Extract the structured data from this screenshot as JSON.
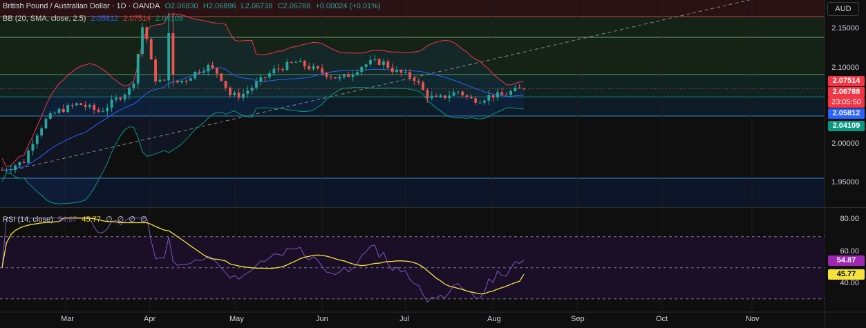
{
  "header": {
    "symbol": "British Pound / Australian Dollar · 1D · OANDA",
    "open": "O2.06830",
    "high": "H2.06896",
    "low": "L2.06738",
    "close": "C2.06788",
    "change": "+0.00024 (+0.01%)",
    "bb_label": "BB (20, SMA, close, 2.5)",
    "bb_basis": "2.05812",
    "bb_upper": "2.07514",
    "bb_lower": "2.04109"
  },
  "rsi_header": {
    "label": "RSI (14, close)",
    "rsi": "54.87",
    "ma": "45.77",
    "extras": [
      "∅",
      "∅",
      "∅",
      "∅"
    ]
  },
  "axis": {
    "unit": "AUD",
    "price_ticks": [
      "2.15000",
      "2.10000",
      "2.00000",
      "1.95000"
    ],
    "rsi_ticks": [
      "80.00",
      "60.00",
      "40.00"
    ],
    "months": [
      "Mar",
      "Apr",
      "May",
      "Jun",
      "Jul",
      "Aug",
      "Sep",
      "Oct",
      "Nov"
    ]
  },
  "badges": {
    "upper": "2.07514",
    "price": "2.06788",
    "countdown": "23:05:50",
    "basis": "2.05812",
    "lower": "2.04109",
    "rsi": "54.87",
    "rsi_ma": "45.77"
  },
  "colors": {
    "up": "#26a69a",
    "down": "#ef5350",
    "bb_basis": "#2962ff",
    "bb_upper": "#f23645",
    "bb_lower": "#089981",
    "rsi": "#7e57c2",
    "rsi_ma": "#f5e33b"
  },
  "chart_data": {
    "type": "candlestick",
    "instrument": "GBP/AUD",
    "interval": "1D",
    "ylim": [
      1.925,
      2.175
    ],
    "approx_close_path": [
      1.97,
      1.975,
      1.98,
      2.01,
      2.03,
      2.04,
      2.045,
      2.05,
      2.045,
      2.04,
      2.05,
      2.06,
      2.07,
      2.15,
      2.08,
      2.075,
      2.075,
      2.08,
      2.09,
      2.095,
      2.085,
      2.06,
      2.06,
      2.07,
      2.08,
      2.09,
      2.095,
      2.1,
      2.095,
      2.09,
      2.085,
      2.08,
      2.085,
      2.095,
      2.1,
      2.1,
      2.09,
      2.085,
      2.08,
      2.06,
      2.055,
      2.06,
      2.065,
      2.055,
      2.055,
      2.06,
      2.06,
      2.065,
      2.0679
    ],
    "rsi_last": 54.87,
    "rsi_ma_last": 45.77,
    "rsi_levels": [
      70,
      50,
      30
    ]
  }
}
